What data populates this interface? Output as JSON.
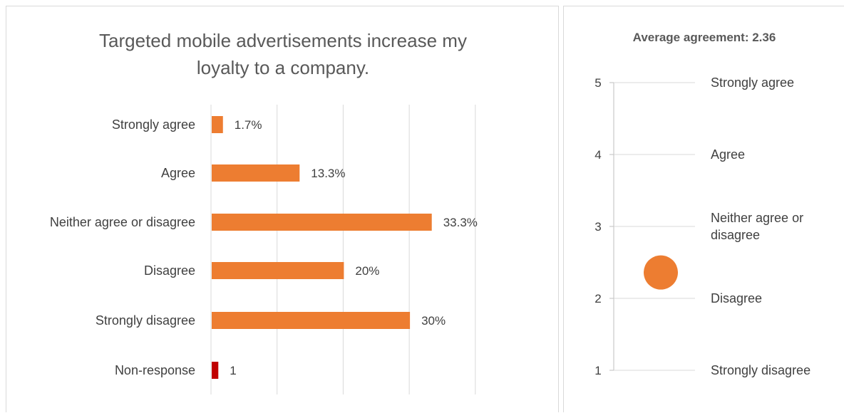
{
  "chart_data": [
    {
      "type": "bar",
      "orientation": "horizontal",
      "title": "Targeted mobile advertisements increase my\nloyalty to a company.",
      "categories": [
        "Strongly agree",
        "Agree",
        "Neither agree or disagree",
        "Disagree",
        "Strongly disagree",
        "Non-response"
      ],
      "values": [
        1.7,
        13.3,
        33.3,
        20,
        30,
        1
      ],
      "data_labels": [
        "1.7%",
        "13.3%",
        "33.3%",
        "20%",
        "30%",
        "1"
      ],
      "bar_colors": [
        "#ed7d31",
        "#ed7d31",
        "#ed7d31",
        "#ed7d31",
        "#ed7d31",
        "#c00000"
      ],
      "xlim": [
        0,
        42
      ],
      "grid": true,
      "legend": "none"
    },
    {
      "type": "scatter",
      "title": "Average agreement: 2.36",
      "value": 2.36,
      "ylim": [
        1,
        5
      ],
      "yticks": [
        1,
        2,
        3,
        4,
        5
      ],
      "tick_labels": [
        "1",
        "2",
        "3",
        "4",
        "5"
      ],
      "level_labels": [
        "Strongly disagree",
        "Disagree",
        "Neither agree or disagree",
        "Agree",
        "Strongly agree"
      ],
      "marker_color": "#ed7d31",
      "grid": true
    }
  ]
}
